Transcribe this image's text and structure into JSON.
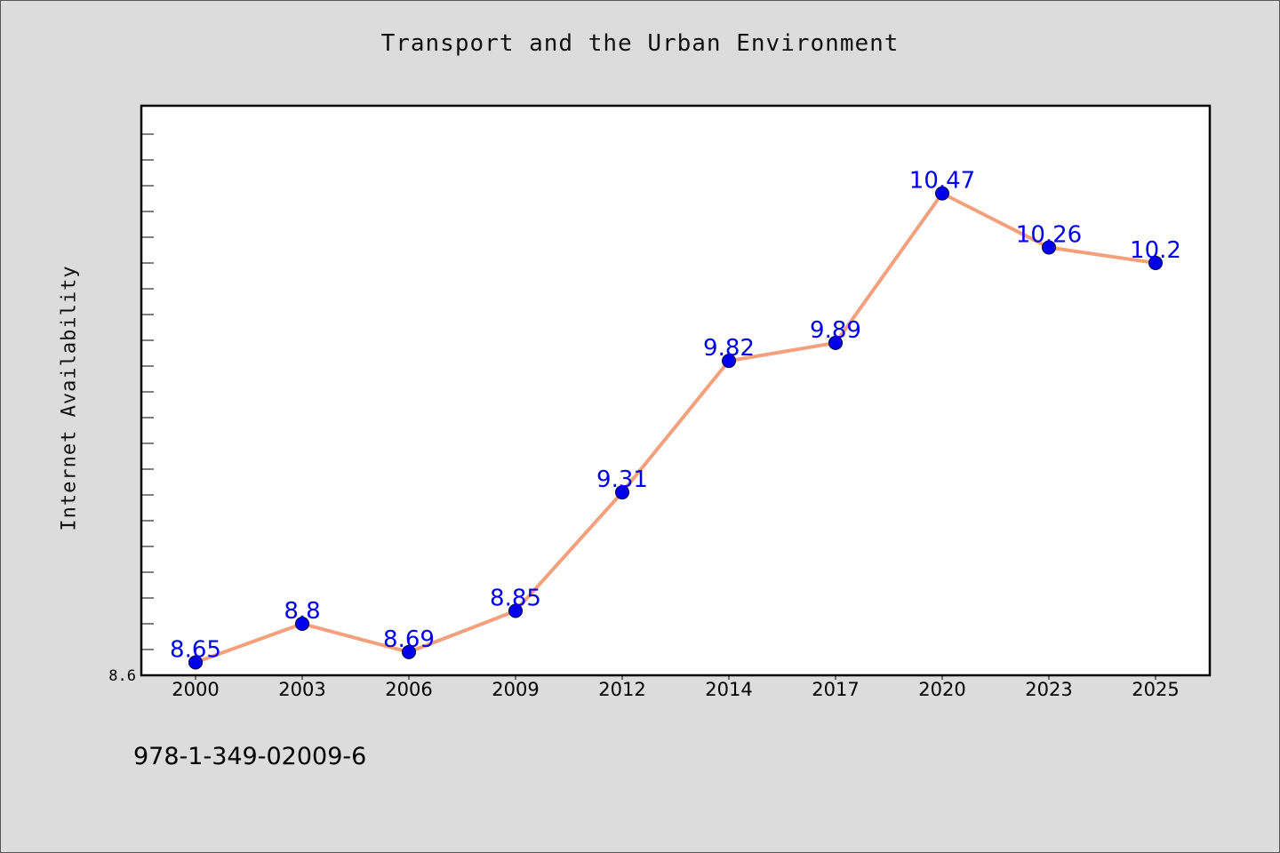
{
  "chart_data": {
    "type": "line",
    "title": "Transport and the Urban Environment",
    "xlabel": "",
    "ylabel": "Internet Availability",
    "categories": [
      "2000",
      "2003",
      "2006",
      "2009",
      "2012",
      "2014",
      "2017",
      "2020",
      "2023",
      "2025"
    ],
    "series": [
      {
        "values": [
          8.65,
          8.8,
          8.69,
          8.85,
          9.31,
          9.82,
          9.89,
          10.47,
          10.26,
          10.2
        ],
        "line_color": "#f4a07c",
        "marker_color": "#0000ee"
      }
    ],
    "y_tick_labels": [
      "8.6"
    ],
    "ylim": [
      8.6,
      10.81
    ],
    "grid": false,
    "legend": "none",
    "data_labels": true
  },
  "footer": {
    "isbn": "978-1-349-02009-6"
  },
  "colors": {
    "background": "#dcdcdc",
    "plot_background": "#ffffff",
    "line": "#f4a07c",
    "marker": "#0000ee",
    "data_label": "#0000ee"
  }
}
